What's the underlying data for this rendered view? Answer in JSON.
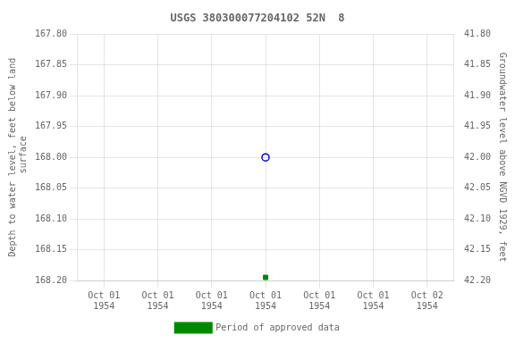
{
  "chart_data": {
    "type": "scatter",
    "title": "USGS 380300077204102 52N  8",
    "ylabel": "Depth to water level, feet below land\n surface",
    "y2label": "Groundwater level above NGVD 1929, feet",
    "categories": [
      "Oct 01\n1954",
      "Oct 01\n1954",
      "Oct 01\n1954",
      "Oct 01\n1954",
      "Oct 01\n1954",
      "Oct 01\n1954",
      "Oct 02\n1954"
    ],
    "series": [
      {
        "color": "#0000cc",
        "marker": "open_circle",
        "values": [
          null,
          null,
          null,
          168.0,
          null,
          null,
          null
        ]
      },
      {
        "name": "Period of approved data",
        "color": "#008800",
        "marker": "square",
        "values": [
          null,
          null,
          null,
          168.195,
          null,
          null,
          null
        ]
      }
    ],
    "ylim": [
      168.2,
      167.8
    ],
    "yticks": [
      {
        "value": 167.8,
        "label": "167.80"
      },
      167.85,
      {
        "value": 167.9,
        "label": "167.90"
      },
      167.95,
      {
        "value": 168.0,
        "label": "168.00"
      },
      168.05,
      {
        "value": 168.1,
        "label": "168.10"
      },
      168.15,
      {
        "value": 168.2,
        "label": "168.20"
      }
    ],
    "y2lim": [
      42.2,
      41.8
    ],
    "y2ticks": [
      {
        "value": 42.2,
        "label": "42.20"
      },
      42.15,
      {
        "value": 42.1,
        "label": "42.10"
      },
      42.05,
      {
        "value": 42.0,
        "label": "42.00"
      },
      41.95,
      {
        "value": 41.9,
        "label": "41.90"
      },
      41.85,
      {
        "value": 41.8,
        "label": "41.80"
      }
    ],
    "grid": true,
    "legend": "bottom"
  }
}
